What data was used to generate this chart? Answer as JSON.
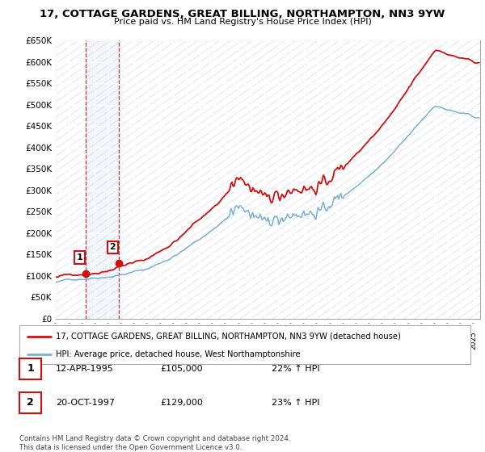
{
  "title": "17, COTTAGE GARDENS, GREAT BILLING, NORTHAMPTON, NN3 9YW",
  "subtitle": "Price paid vs. HM Land Registry's House Price Index (HPI)",
  "legend_line1": "17, COTTAGE GARDENS, GREAT BILLING, NORTHAMPTON, NN3 9YW (detached house)",
  "legend_line2": "HPI: Average price, detached house, West Northamptonshire",
  "sale1_date": "12-APR-1995",
  "sale1_price": 105000,
  "sale1_hpi_pct": "22% ↑ HPI",
  "sale2_date": "20-OCT-1997",
  "sale2_price": 129000,
  "sale2_hpi_pct": "23% ↑ HPI",
  "footer": "Contains HM Land Registry data © Crown copyright and database right 2024.\nThis data is licensed under the Open Government Licence v3.0.",
  "hpi_color": "#7bafd4",
  "sale_color": "#cc1111",
  "vline_color": "#cc1111",
  "ylim_min": 0,
  "ylim_max": 650000,
  "ytick_step": 50000,
  "xstart": 1993,
  "xend": 2025.5,
  "sale1_t": 1995.29,
  "sale2_t": 1997.8
}
